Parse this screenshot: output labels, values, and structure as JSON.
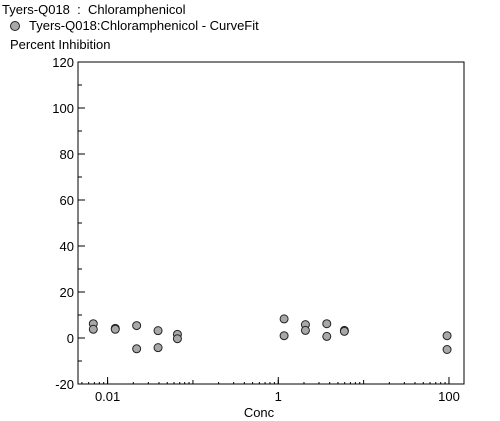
{
  "chart_data": {
    "type": "scatter",
    "title": "Tyers-Q018  :  Chloramphenicol",
    "legend": {
      "placement": "top-left",
      "entries": [
        "Tyers-Q018:Chloramphenicol - CurveFit"
      ]
    },
    "ylabel": "Percent Inhibition",
    "xlabel": "Conc",
    "xscale": "log",
    "xlim": [
      0.0045,
      150
    ],
    "ylim": [
      -20,
      120
    ],
    "yticks": [
      -20,
      0,
      20,
      40,
      60,
      80,
      100,
      120
    ],
    "xticks": [
      0.01,
      1,
      100
    ],
    "xtick_labels": [
      "0.01",
      "1",
      "100"
    ],
    "marker_color": "#a8a8a8",
    "grid": false,
    "series": [
      {
        "name": "Tyers-Q018:Chloramphenicol - CurveFit",
        "points": [
          {
            "x": 0.0068,
            "y": 6.2
          },
          {
            "x": 0.0068,
            "y": 3.8
          },
          {
            "x": 0.0123,
            "y": 4.2
          },
          {
            "x": 0.0123,
            "y": 3.8
          },
          {
            "x": 0.0219,
            "y": 5.4
          },
          {
            "x": 0.0219,
            "y": -4.7
          },
          {
            "x": 0.039,
            "y": 3.2
          },
          {
            "x": 0.039,
            "y": -4.2
          },
          {
            "x": 0.0658,
            "y": 1.6
          },
          {
            "x": 0.0658,
            "y": -0.3
          },
          {
            "x": 1.17,
            "y": 8.3
          },
          {
            "x": 1.17,
            "y": 1.0
          },
          {
            "x": 2.08,
            "y": 5.8
          },
          {
            "x": 2.08,
            "y": 3.3
          },
          {
            "x": 3.7,
            "y": 6.2
          },
          {
            "x": 3.7,
            "y": 0.7
          },
          {
            "x": 5.95,
            "y": 3.3
          },
          {
            "x": 5.95,
            "y": 2.9
          },
          {
            "x": 95,
            "y": 1.0
          },
          {
            "x": 95,
            "y": -5.0
          }
        ]
      }
    ]
  }
}
